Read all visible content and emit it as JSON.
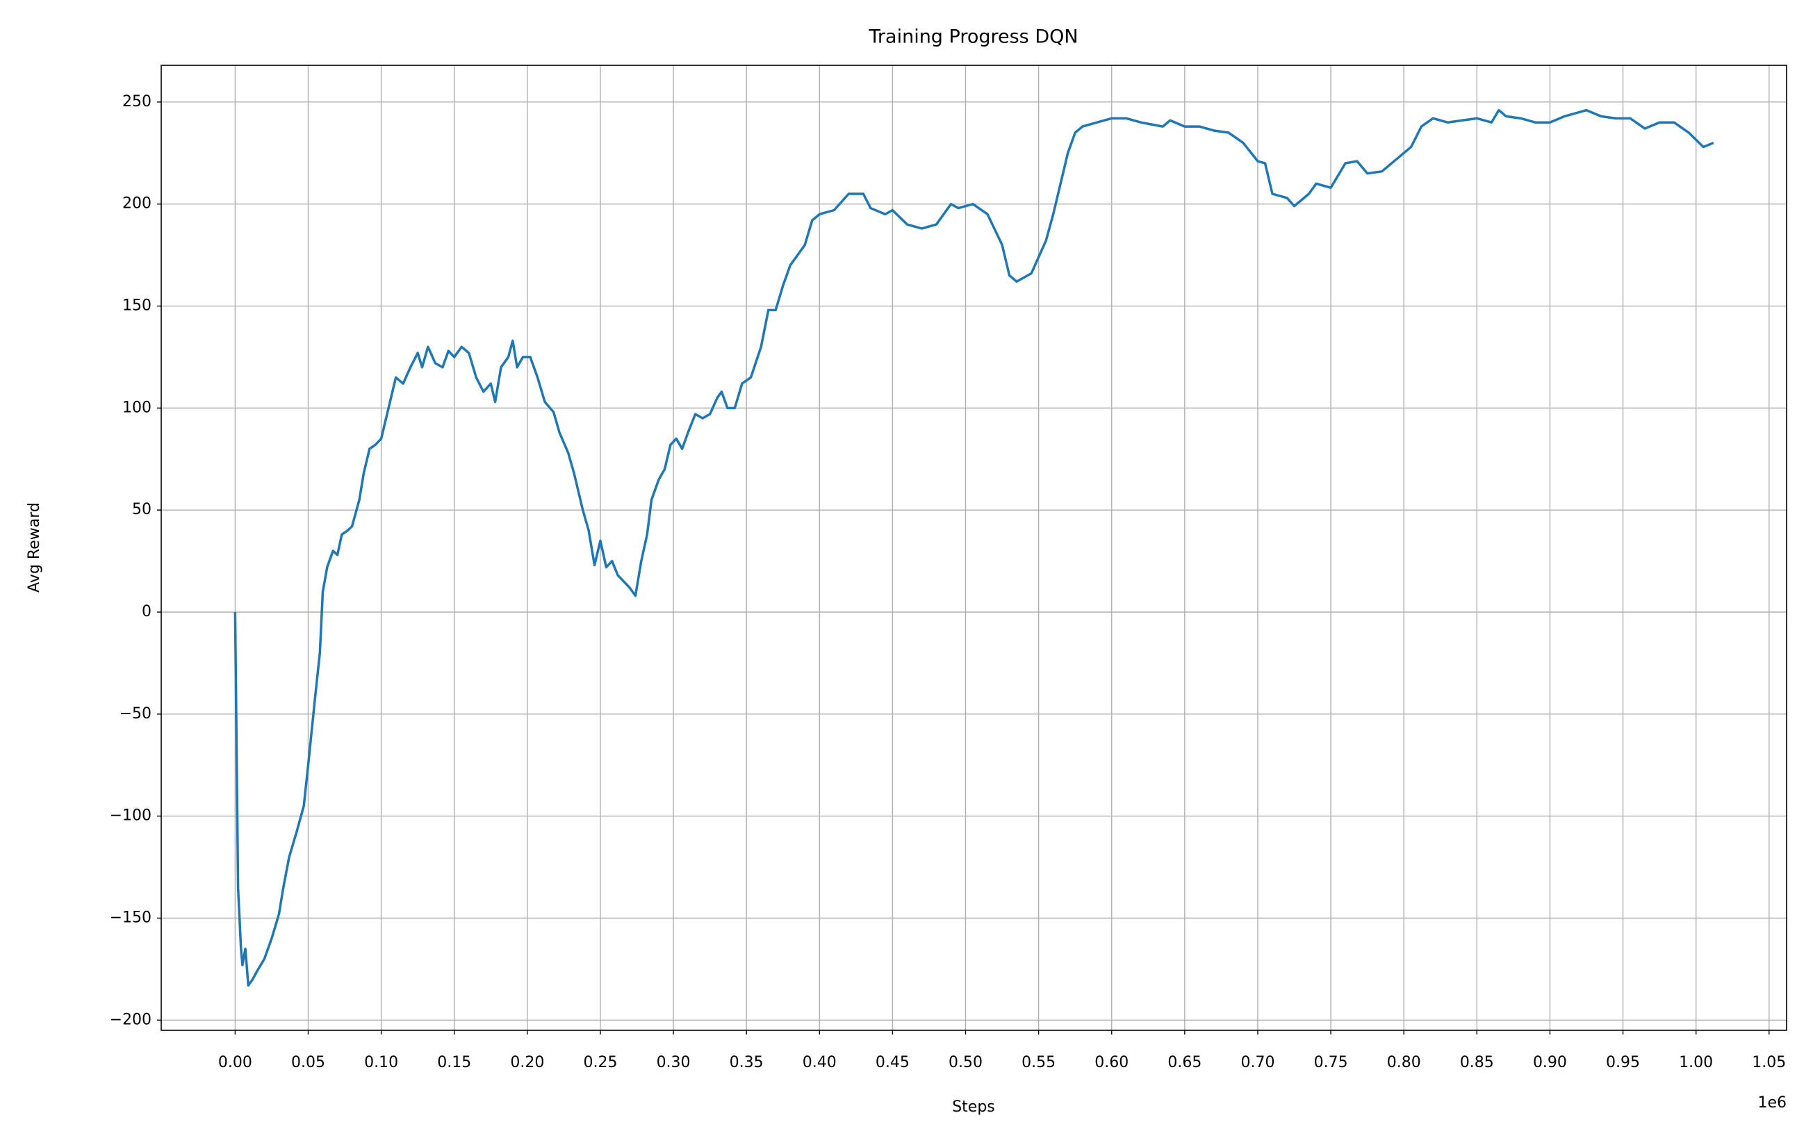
{
  "chart_data": {
    "type": "line",
    "title": "Training Progress DQN",
    "xlabel": "Steps",
    "ylabel": "Avg Reward",
    "x_offset_label": "1e6",
    "color": "#1f77b4",
    "grid": true,
    "xlim": [
      -50600,
      1062000
    ],
    "ylim": [
      -205,
      268
    ],
    "xticks": [
      {
        "value": 0,
        "label": "0.00"
      },
      {
        "value": 50000,
        "label": "0.05"
      },
      {
        "value": 100000,
        "label": "0.10"
      },
      {
        "value": 150000,
        "label": "0.15"
      },
      {
        "value": 200000,
        "label": "0.20"
      },
      {
        "value": 250000,
        "label": "0.25"
      },
      {
        "value": 300000,
        "label": "0.30"
      },
      {
        "value": 350000,
        "label": "0.35"
      },
      {
        "value": 400000,
        "label": "0.40"
      },
      {
        "value": 450000,
        "label": "0.45"
      },
      {
        "value": 500000,
        "label": "0.50"
      },
      {
        "value": 550000,
        "label": "0.55"
      },
      {
        "value": 600000,
        "label": "0.60"
      },
      {
        "value": 650000,
        "label": "0.65"
      },
      {
        "value": 700000,
        "label": "0.70"
      },
      {
        "value": 750000,
        "label": "0.75"
      },
      {
        "value": 800000,
        "label": "0.80"
      },
      {
        "value": 850000,
        "label": "0.85"
      },
      {
        "value": 900000,
        "label": "0.90"
      },
      {
        "value": 950000,
        "label": "0.95"
      },
      {
        "value": 1000000,
        "label": "1.00"
      },
      {
        "value": 1050000,
        "label": "1.05"
      }
    ],
    "yticks": [
      {
        "value": -200,
        "label": "−200"
      },
      {
        "value": -150,
        "label": "−150"
      },
      {
        "value": -100,
        "label": "−100"
      },
      {
        "value": -50,
        "label": "−50"
      },
      0,
      50,
      100,
      150,
      200,
      250
    ],
    "x": [
      0,
      2000,
      4000,
      5000,
      7000,
      9000,
      12000,
      15000,
      20000,
      25000,
      30000,
      33000,
      37000,
      42000,
      47000,
      50000,
      55000,
      58000,
      60000,
      63000,
      67000,
      70000,
      73000,
      77000,
      80000,
      85000,
      88000,
      92000,
      96000,
      100000,
      105000,
      110000,
      115000,
      120000,
      125000,
      128000,
      132000,
      137000,
      142000,
      146000,
      150000,
      155000,
      160000,
      165000,
      170000,
      175000,
      178000,
      182000,
      187000,
      190000,
      193000,
      197000,
      202000,
      207000,
      212000,
      218000,
      222000,
      228000,
      232000,
      238000,
      242000,
      246000,
      250000,
      254000,
      258000,
      262000,
      266000,
      270000,
      274000,
      278000,
      282000,
      285000,
      290000,
      294000,
      298000,
      302000,
      306000,
      310000,
      315000,
      320000,
      325000,
      330000,
      333000,
      337000,
      342000,
      347000,
      353000,
      360000,
      365000,
      370000,
      375000,
      380000,
      385000,
      390000,
      395000,
      400000,
      410000,
      420000,
      430000,
      435000,
      445000,
      450000,
      460000,
      470000,
      480000,
      490000,
      495000,
      505000,
      515000,
      525000,
      530000,
      535000,
      545000,
      555000,
      560000,
      565000,
      570000,
      575000,
      580000,
      590000,
      600000,
      610000,
      620000,
      635000,
      640000,
      650000,
      660000,
      670000,
      680000,
      690000,
      700000,
      705000,
      710000,
      720000,
      725000,
      735000,
      740000,
      750000,
      760000,
      768000,
      775000,
      785000,
      795000,
      805000,
      812000,
      820000,
      830000,
      840000,
      850000,
      860000,
      865000,
      870000,
      880000,
      890000,
      900000,
      910000,
      925000,
      935000,
      945000,
      955000,
      965000,
      975000,
      985000,
      995000,
      1005000,
      1012000
    ],
    "values": [
      0,
      -135,
      -165,
      -173,
      -165,
      -183,
      -180,
      -176,
      -170,
      -160,
      -148,
      -135,
      -120,
      -108,
      -95,
      -75,
      -40,
      -20,
      10,
      22,
      30,
      28,
      38,
      40,
      42,
      55,
      68,
      80,
      82,
      85,
      100,
      115,
      112,
      120,
      127,
      120,
      130,
      122,
      120,
      128,
      125,
      130,
      127,
      115,
      108,
      112,
      103,
      120,
      125,
      133,
      120,
      125,
      125,
      115,
      103,
      98,
      88,
      78,
      68,
      50,
      40,
      23,
      35,
      22,
      25,
      18,
      15,
      12,
      8,
      25,
      38,
      55,
      65,
      70,
      82,
      85,
      80,
      88,
      97,
      95,
      97,
      105,
      108,
      100,
      100,
      112,
      115,
      130,
      148,
      148,
      160,
      170,
      175,
      180,
      192,
      195,
      197,
      205,
      205,
      198,
      195,
      197,
      190,
      188,
      190,
      200,
      198,
      200,
      195,
      180,
      165,
      162,
      166,
      182,
      195,
      210,
      225,
      235,
      238,
      240,
      242,
      242,
      240,
      238,
      241,
      238,
      238,
      236,
      235,
      230,
      221,
      220,
      205,
      203,
      199,
      205,
      210,
      208,
      220,
      221,
      215,
      216,
      222,
      228,
      238,
      242,
      240,
      241,
      242,
      240,
      246,
      243,
      242,
      240,
      240,
      243,
      246,
      243,
      242,
      242,
      237,
      240,
      240,
      235,
      228,
      230
    ]
  }
}
